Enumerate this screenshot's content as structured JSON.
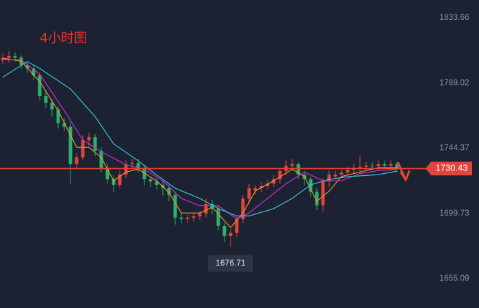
{
  "chart_data": {
    "type": "candlestick",
    "title": "4小时图",
    "ylim": [
      1634.94,
      1845.85
    ],
    "yticks": [
      1655.09,
      1699.73,
      1744.37,
      1789.02,
      1833.66
    ],
    "up_color": "#e2453c",
    "down_color": "#27b36a",
    "open": [
      1804.5,
      1806.0,
      1807.4,
      1806.5,
      1801.3,
      1799.0,
      1794.3,
      1780.2,
      1775.5,
      1770.9,
      1761.5,
      1759.1,
      1733.4,
      1738.1,
      1749.8,
      1752.1,
      1742.7,
      1731.0,
      1723.1,
      1719.3,
      1726.3,
      1733.4,
      1734.3,
      1731.0,
      1723.1,
      1721.6,
      1719.3,
      1717.0,
      1712.3,
      1696.8,
      1695.9,
      1696.8,
      1697.7,
      1699.6,
      1706.2,
      1702.9,
      1691.2,
      1684.2,
      1686.5,
      1695.9,
      1709.9,
      1715.5,
      1717.0,
      1718.4,
      1720.2,
      1723.1,
      1728.7,
      1732.4,
      1733.4,
      1726.3,
      1723.1,
      1714.6,
      1705.2,
      1721.6,
      1725.0,
      1726.3,
      1727.7,
      1729.6,
      1731.0,
      1731.5,
      1732.4,
      1732.0,
      1733.4,
      1732.4,
      1733.4
    ],
    "high": [
      1809.5,
      1811,
      1810,
      1808,
      1803,
      1801,
      1796,
      1784,
      1778,
      1773,
      1765,
      1762,
      1741,
      1753,
      1755,
      1754,
      1745,
      1734,
      1726,
      1729,
      1736,
      1737,
      1737,
      1733,
      1725,
      1724,
      1722,
      1719,
      1714,
      1700,
      1699,
      1700,
      1701,
      1710,
      1709,
      1705,
      1693,
      1689,
      1698,
      1712,
      1720,
      1719,
      1721,
      1723,
      1726,
      1731,
      1736,
      1737,
      1735,
      1729,
      1725,
      1717,
      1724,
      1729,
      1729,
      1730,
      1732,
      1734,
      1739,
      1735,
      1735,
      1736,
      1736,
      1736,
      1735
    ],
    "low": [
      1802,
      1803,
      1804,
      1799,
      1796,
      1791,
      1777,
      1772,
      1766,
      1758,
      1756,
      1720,
      1730,
      1736,
      1746,
      1739,
      1728,
      1720,
      1714,
      1717,
      1724,
      1730,
      1728,
      1719,
      1718,
      1716,
      1712,
      1708,
      1692,
      1693,
      1693,
      1694,
      1695,
      1697,
      1699,
      1688,
      1680,
      1676.71,
      1683,
      1693,
      1706,
      1713,
      1714,
      1716,
      1718,
      1720,
      1726,
      1729,
      1723,
      1719,
      1711,
      1702,
      1701,
      1718,
      1723,
      1724,
      1725,
      1727,
      1728,
      1729,
      1729,
      1729,
      1730,
      1729,
      1728
    ],
    "close": [
      1806.0,
      1807.4,
      1806.5,
      1801.3,
      1799.0,
      1794.3,
      1780.2,
      1775.5,
      1770.9,
      1761.5,
      1759.1,
      1733.4,
      1738.1,
      1749.8,
      1752.1,
      1742.7,
      1731.0,
      1723.1,
      1719.3,
      1726.3,
      1733.4,
      1734.3,
      1731.0,
      1723.1,
      1721.6,
      1719.3,
      1717.0,
      1712.3,
      1696.8,
      1695.9,
      1696.8,
      1697.7,
      1699.6,
      1706.2,
      1702.9,
      1691.2,
      1684.2,
      1686.5,
      1695.9,
      1709.9,
      1717.0,
      1717.0,
      1718.4,
      1720.2,
      1723.1,
      1728.7,
      1732.4,
      1733.4,
      1726.3,
      1723.1,
      1714.6,
      1705.2,
      1721.6,
      1726.3,
      1726.3,
      1727.7,
      1729.6,
      1731.0,
      1731.5,
      1732.4,
      1732.0,
      1733.4,
      1732.4,
      1733.4,
      1730.43
    ],
    "lines": [
      {
        "color": "#f0922b",
        "x": [
          0,
          3,
          6,
          9,
          12,
          14,
          16,
          18,
          20,
          22,
          25,
          27,
          29,
          32,
          34,
          37,
          39,
          41,
          44,
          47,
          49,
          51,
          53,
          55,
          58,
          61,
          64
        ],
        "values": [
          1806,
          1804,
          1790,
          1770,
          1745,
          1745,
          1738,
          1722,
          1728,
          1730,
          1722,
          1714,
          1700,
          1700,
          1704,
          1690,
          1700,
          1715,
          1722,
          1730,
          1725,
          1708,
          1715,
          1725,
          1728,
          1731,
          1731
        ]
      },
      {
        "color": "#d22bd8",
        "x": [
          0,
          3,
          6,
          10,
          13,
          16,
          20,
          23,
          26,
          29,
          32,
          35,
          38,
          40,
          43,
          46,
          49,
          52,
          55,
          58,
          61,
          64
        ],
        "values": [
          1805,
          1805,
          1795,
          1770,
          1750,
          1742,
          1733,
          1730,
          1722,
          1710,
          1705,
          1705,
          1696,
          1700,
          1710,
          1720,
          1728,
          1722,
          1722,
          1727,
          1729,
          1730
        ]
      },
      {
        "color": "#36c6d8",
        "x": [
          0,
          4,
          6,
          11,
          15,
          18,
          22,
          25,
          28,
          32,
          35,
          38,
          40,
          44,
          47,
          50,
          53,
          56,
          61,
          64
        ],
        "values": [
          1793,
          1803.7,
          1799,
          1784.9,
          1766,
          1747.4,
          1735.7,
          1726,
          1716.9,
          1710,
          1703,
          1698,
          1698,
          1703,
          1710,
          1719.3,
          1723,
          1724.9,
          1726.3,
          1728.7
        ]
      }
    ]
  }
}
